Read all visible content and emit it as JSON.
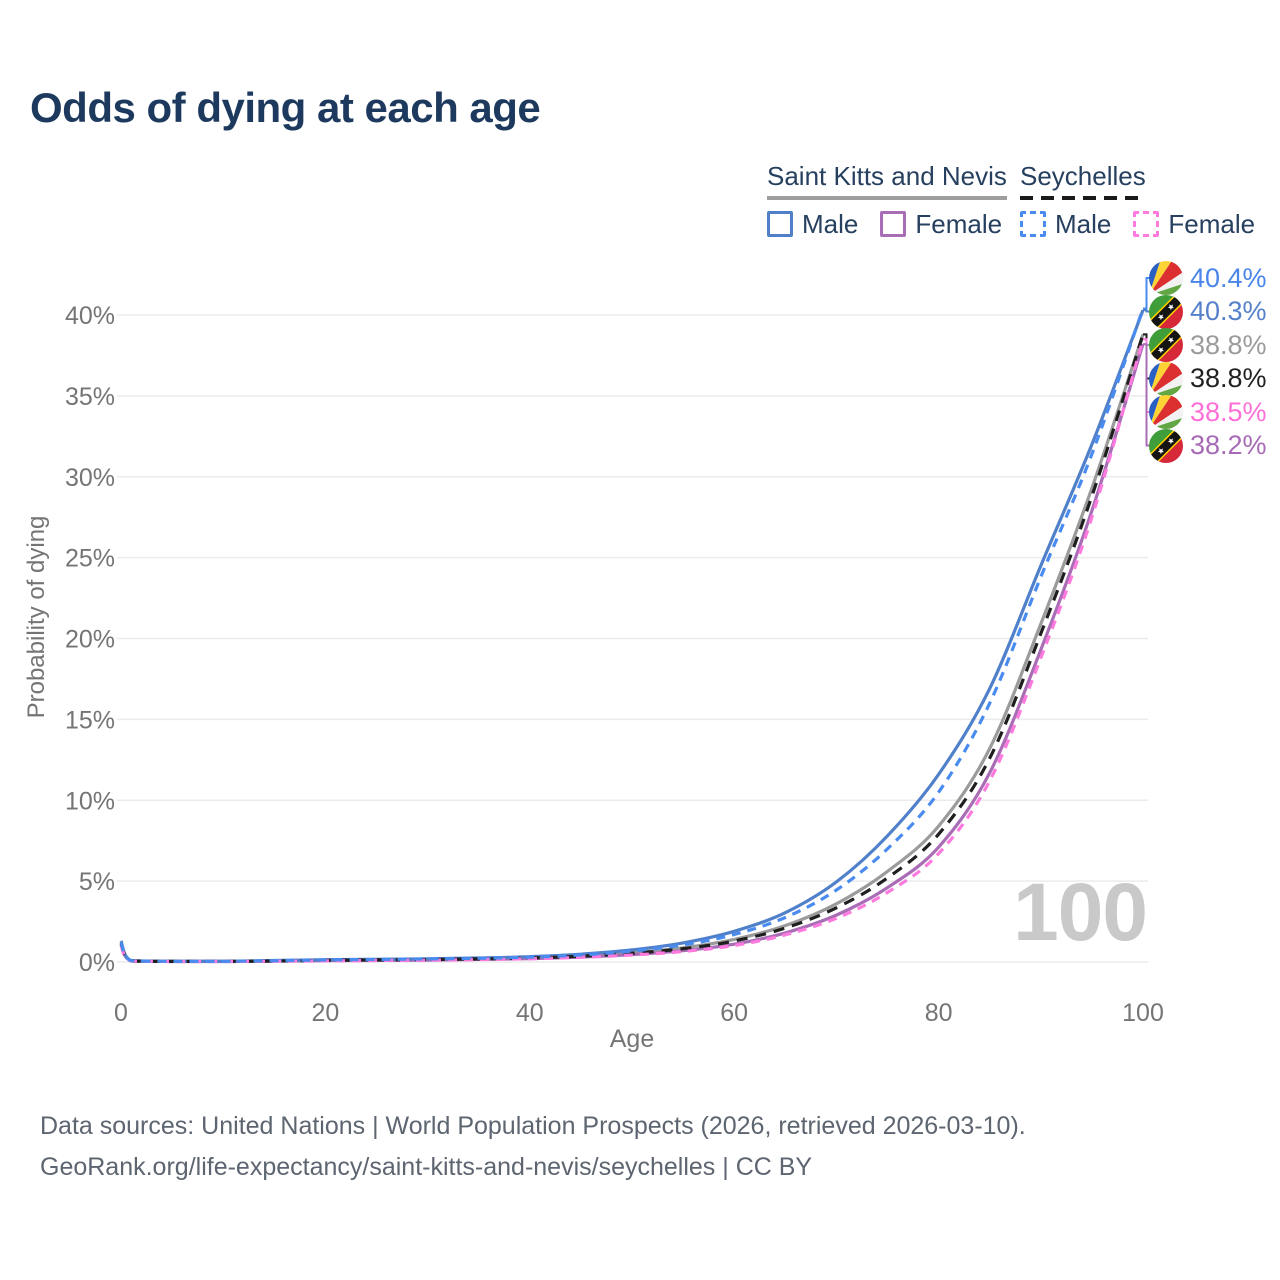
{
  "title": "Odds of dying at each age",
  "watermark": "100",
  "colors": {
    "background": "#ffffff",
    "title": "#1d3a5e",
    "legend_text": "#27405f",
    "axis_text": "#757575",
    "grid": "#ebebeb",
    "watermark": "#c9c9c9",
    "footer_text": "#5d6570",
    "skn_underline": "#9e9e9e",
    "sey_underline": "#1a1a1a"
  },
  "legend": {
    "groups": [
      {
        "country": "Saint Kitts and Nevis",
        "line_style": "solid",
        "items": [
          {
            "label": "Male",
            "color": "#4f80c9"
          },
          {
            "label": "Female",
            "color": "#a96db6"
          }
        ]
      },
      {
        "country": "Seychelles",
        "line_style": "dashed",
        "items": [
          {
            "label": "Male",
            "color": "#4a8bf0"
          },
          {
            "label": "Female",
            "color": "#ff7ade"
          }
        ]
      }
    ]
  },
  "footer": {
    "line1": "Data sources: United Nations | World Population Prospects (2026, retrieved 2026-03-10).",
    "line2": "GeoRank.org/life-expectancy/saint-kitts-and-nevis/seychelles | CC BY"
  },
  "chart_data": {
    "type": "line",
    "title": "Odds of dying at each age",
    "xlabel": "Age",
    "ylabel": "Probability of dying",
    "xlim": [
      0,
      100
    ],
    "ylim": [
      0,
      40
    ],
    "xticks": [
      0,
      20,
      40,
      60,
      80,
      100
    ],
    "yticks": [
      0,
      5,
      10,
      15,
      20,
      25,
      30,
      35,
      40
    ],
    "ytick_suffix": "%",
    "grid": true,
    "legend_position": "top-right",
    "x": [
      0,
      1,
      5,
      10,
      15,
      20,
      25,
      30,
      35,
      40,
      45,
      50,
      55,
      60,
      65,
      70,
      75,
      80,
      85,
      90,
      95,
      100
    ],
    "series": [
      {
        "key": "skn-male",
        "name": "Saint Kitts and Nevis - Male",
        "color": "#4f80c9",
        "dashed": false,
        "values": [
          1.3,
          0.09,
          0.05,
          0.05,
          0.09,
          0.14,
          0.17,
          0.2,
          0.25,
          0.33,
          0.48,
          0.75,
          1.18,
          1.9,
          3.05,
          4.95,
          7.8,
          11.6,
          16.9,
          24.5,
          32.0,
          40.3
        ]
      },
      {
        "key": "sey-male",
        "name": "Seychelles - Male",
        "color": "#4a8bf0",
        "dashed": true,
        "values": [
          1.2,
          0.08,
          0.04,
          0.04,
          0.08,
          0.13,
          0.16,
          0.19,
          0.23,
          0.3,
          0.44,
          0.68,
          1.06,
          1.7,
          2.75,
          4.45,
          7.0,
          10.5,
          16.0,
          23.8,
          31.4,
          40.4
        ]
      },
      {
        "key": "skn-both",
        "name": "Saint Kitts and Nevis - Both sexes",
        "color": "#9b9b9b",
        "dashed": false,
        "values": [
          1.15,
          0.08,
          0.04,
          0.04,
          0.07,
          0.11,
          0.14,
          0.16,
          0.2,
          0.27,
          0.39,
          0.58,
          0.88,
          1.4,
          2.25,
          3.6,
          5.6,
          8.4,
          13.2,
          20.9,
          29.3,
          38.8
        ]
      },
      {
        "key": "sey-both",
        "name": "Seychelles - Both sexes",
        "color": "#1f1f1f",
        "dashed": true,
        "values": [
          1.1,
          0.07,
          0.04,
          0.04,
          0.06,
          0.1,
          0.13,
          0.15,
          0.19,
          0.25,
          0.36,
          0.54,
          0.82,
          1.3,
          2.1,
          3.35,
          5.2,
          7.9,
          12.6,
          20.3,
          28.8,
          38.8
        ]
      },
      {
        "key": "skn-female",
        "name": "Saint Kitts and Nevis - Female",
        "color": "#a96db6",
        "dashed": false,
        "values": [
          1.05,
          0.07,
          0.03,
          0.03,
          0.05,
          0.08,
          0.1,
          0.12,
          0.16,
          0.21,
          0.31,
          0.46,
          0.7,
          1.1,
          1.8,
          2.9,
          4.6,
          7.1,
          11.7,
          19.3,
          27.9,
          38.2
        ]
      },
      {
        "key": "sey-female",
        "name": "Seychelles - Female",
        "color": "#ff7ade",
        "dashed": true,
        "values": [
          1.0,
          0.06,
          0.03,
          0.03,
          0.05,
          0.07,
          0.09,
          0.11,
          0.15,
          0.2,
          0.29,
          0.43,
          0.65,
          1.02,
          1.68,
          2.7,
          4.3,
          6.7,
          11.2,
          18.8,
          27.5,
          38.5
        ]
      }
    ],
    "end_labels": [
      {
        "series_index": 1,
        "flag": "seychelles",
        "text": "40.4%",
        "color": "#4a86ea"
      },
      {
        "series_index": 0,
        "flag": "saint-kitts-and-nevis",
        "text": "40.3%",
        "color": "#5581cb"
      },
      {
        "series_index": 2,
        "flag": "saint-kitts-and-nevis",
        "text": "38.8%",
        "color": "#9b9b9b"
      },
      {
        "series_index": 3,
        "flag": "seychelles",
        "text": "38.8%",
        "color": "#222222"
      },
      {
        "series_index": 5,
        "flag": "seychelles",
        "text": "38.5%",
        "color": "#ff6fd8"
      },
      {
        "series_index": 4,
        "flag": "saint-kitts-and-nevis",
        "text": "38.2%",
        "color": "#a76ab5"
      }
    ]
  }
}
